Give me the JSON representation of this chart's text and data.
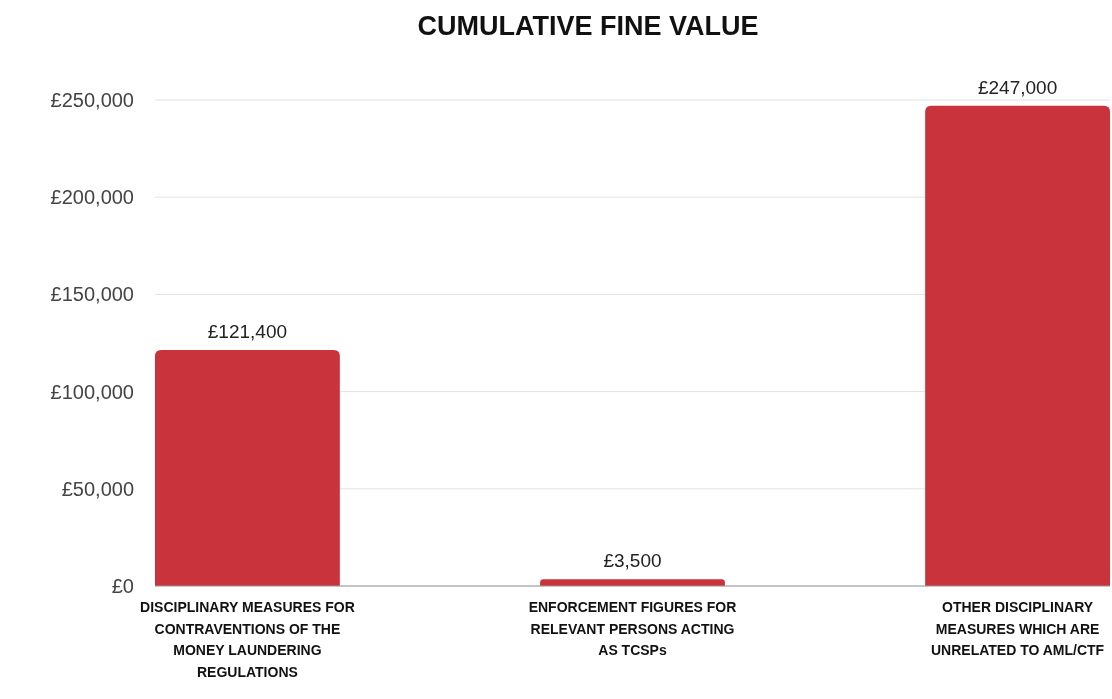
{
  "chart_data": {
    "type": "bar",
    "title": "CUMULATIVE FINE VALUE",
    "categories": [
      "DISCIPLINARY MEASURES  FOR CONTRAVENTIONS OF THE MONEY LAUNDERING REGULATIONS",
      "ENFORCEMENT FIGURES FOR RELEVANT PERSONS ACTING AS TCSPs",
      "OTHER DISCIPLINARY MEASURES WHICH ARE UNRELATED TO AML/CTF"
    ],
    "values": [
      121400,
      3500,
      247000
    ],
    "value_labels": [
      "£121,400",
      "£3,500",
      "£247,000"
    ],
    "color": "#c9333b",
    "ylim": [
      0,
      250000
    ],
    "yticks": [
      {
        "value": 0,
        "label": "£0"
      },
      {
        "value": 50000,
        "label": "£50,000"
      },
      {
        "value": 100000,
        "label": "£100,000"
      },
      {
        "value": 150000,
        "label": "£150,000"
      },
      {
        "value": 200000,
        "label": "£200,000"
      },
      {
        "value": 250000,
        "label": "£250,000"
      }
    ],
    "grid": "y"
  }
}
